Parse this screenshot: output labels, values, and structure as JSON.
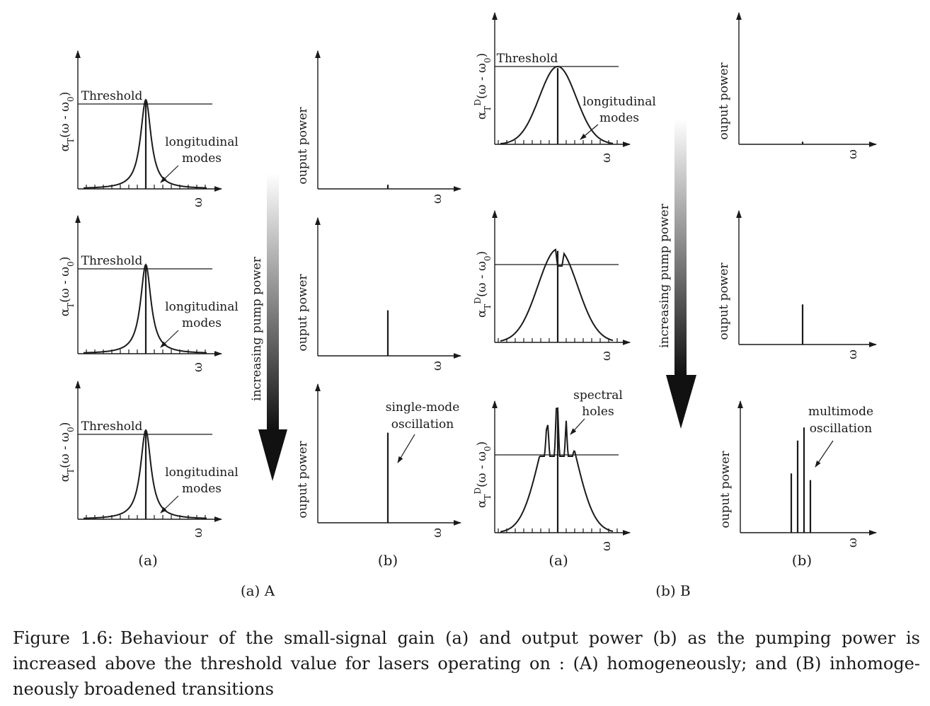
{
  "chart_data": {
    "type": "figure",
    "panel_A": {
      "subcaption": "(a) A",
      "arrow_label": "increasing pump power",
      "gain_plots": {
        "column_label": "(a)",
        "ylabel": "α_T(ω - ω_0)",
        "xlabel": "ω",
        "threshold_label": "Threshold",
        "annotation": [
          "longitudinal",
          "modes"
        ],
        "rows": [
          {
            "lineshape": "lorentzian",
            "peak_relative_to_threshold": 1.05
          },
          {
            "lineshape": "lorentzian",
            "peak_relative_to_threshold": 1.05
          },
          {
            "lineshape": "lorentzian",
            "peak_relative_to_threshold": 1.05
          }
        ]
      },
      "power_plots": {
        "column_label": "(b)",
        "ylabel": "ouput power",
        "xlabel": "ω",
        "rows": [
          {
            "modes": [
              0
            ],
            "heights": [
              0.03
            ]
          },
          {
            "modes": [
              0
            ],
            "heights": [
              0.33
            ]
          },
          {
            "modes": [
              0
            ],
            "heights": [
              0.65
            ],
            "annotation": [
              "single-mode",
              "oscillation"
            ]
          }
        ]
      }
    },
    "panel_B": {
      "subcaption": "(b) B",
      "arrow_label": "increasing pump power",
      "gain_plots": {
        "column_label": "(a)",
        "ylabel": "α_T^D(ω - ω_0)",
        "xlabel": "ω",
        "rows": [
          {
            "lineshape": "gaussian",
            "peak_relative_to_threshold": 1.0,
            "threshold_label": "Threshold",
            "annotation": [
              "longitudinal",
              "modes"
            ]
          },
          {
            "lineshape": "gaussian",
            "peak_relative_to_threshold": 1.2,
            "spectral_holes": 1
          },
          {
            "lineshape": "gaussian",
            "peak_relative_to_threshold": 1.6,
            "spectral_holes": 4,
            "annotation": [
              "spectral",
              "holes"
            ]
          }
        ]
      },
      "power_plots": {
        "column_label": "(b)",
        "ylabel": "ouput power",
        "xlabel": "ω",
        "rows": [
          {
            "modes": [
              0
            ],
            "heights": [
              0.02
            ]
          },
          {
            "modes": [
              0
            ],
            "heights": [
              0.3
            ]
          },
          {
            "modes": [
              -2,
              -1,
              0,
              1
            ],
            "heights": [
              0.45,
              0.7,
              0.8,
              0.4
            ],
            "annotation": [
              "multimode",
              "oscillation"
            ]
          }
        ]
      }
    }
  },
  "caption": {
    "label": "Figure 1.6:",
    "text": "Behaviour of the small-signal gain (a) and output power (b) as the pumping power is increased above the threshold value for lasers operating on : (A) homogeneously; and (B) inhomoge- neously broadened transitions"
  }
}
